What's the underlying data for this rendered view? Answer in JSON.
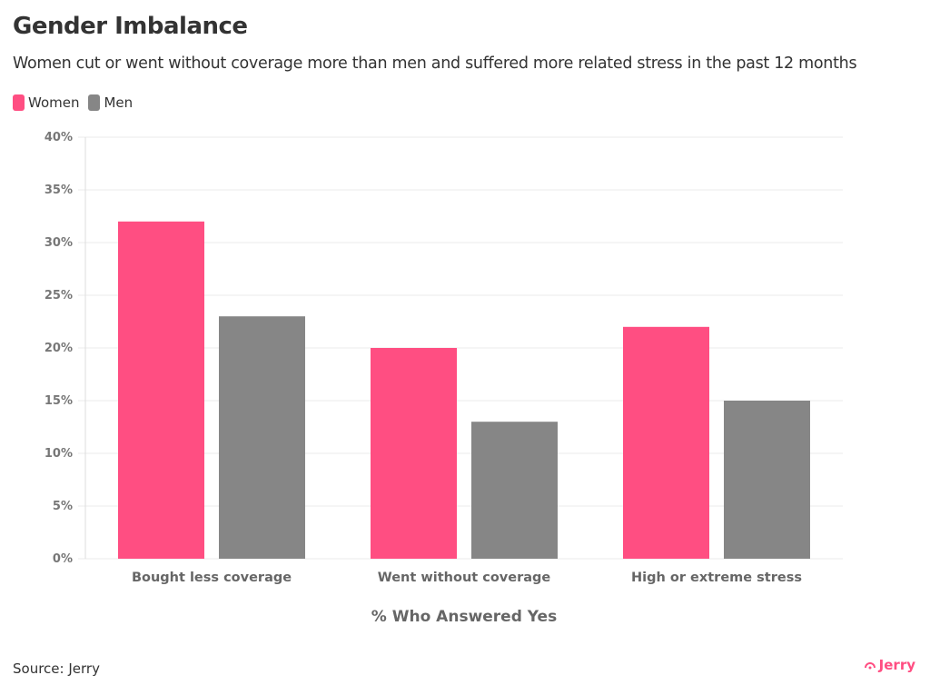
{
  "colors": {
    "women": "#ff4e82",
    "men": "#868686",
    "logo": "#ff4e82"
  },
  "chart_data": {
    "type": "bar",
    "title": "Gender Imbalance",
    "subtitle": "Women cut or went without coverage more than men and suffered more related stress in the past 12 months",
    "categories": [
      "Bought less coverage",
      "Went without coverage",
      "High or extreme stress"
    ],
    "series": [
      {
        "name": "Women",
        "values": [
          32,
          20,
          22
        ]
      },
      {
        "name": "Men",
        "values": [
          23,
          13,
          15
        ]
      }
    ],
    "xlabel": "% Who Answered Yes",
    "ylabel": "",
    "ylim": [
      0,
      40
    ],
    "yticks": [
      "0%",
      "5%",
      "10%",
      "15%",
      "20%",
      "25%",
      "30%",
      "35%",
      "40%"
    ],
    "grid": true,
    "legend": "top-left"
  },
  "footer": {
    "source": "Source: Jerry",
    "logo_text": "Jerry"
  }
}
